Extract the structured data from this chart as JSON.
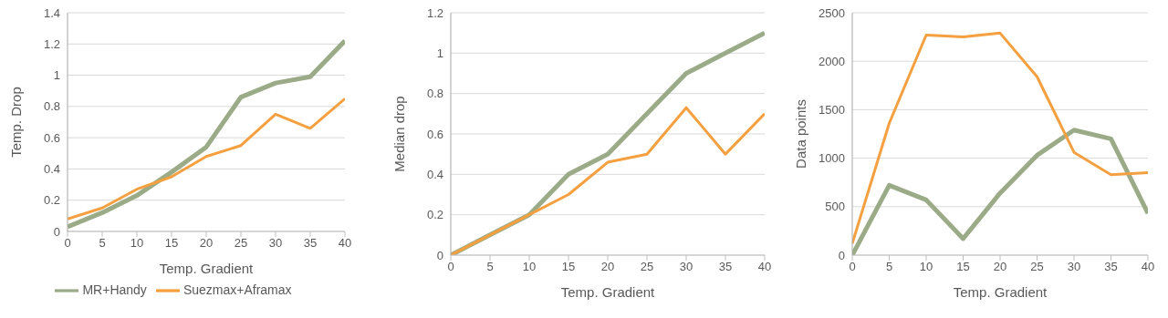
{
  "chart_data": [
    {
      "type": "line",
      "xlabel": "Temp. Gradient",
      "ylabel": "Temp. Drop",
      "x": [
        0,
        5,
        10,
        15,
        20,
        25,
        30,
        35,
        40
      ],
      "xlim": [
        0,
        40
      ],
      "xticks": [
        0,
        5,
        10,
        15,
        20,
        25,
        30,
        35,
        40
      ],
      "ylim": [
        0,
        1.4
      ],
      "yticks": [
        0,
        0.2,
        0.4,
        0.6,
        0.8,
        1,
        1.2,
        1.4
      ],
      "grid": "y",
      "legend": "bottom",
      "marker": "none",
      "line_style": "solid",
      "series": [
        {
          "name": "MR+Handy",
          "color": "#9bab87",
          "values": [
            0.03,
            0.12,
            0.23,
            0.38,
            0.54,
            0.86,
            0.95,
            0.99,
            1.22
          ]
        },
        {
          "name": "Suezmax+Aframax",
          "color": "#f4a040",
          "values": [
            0.08,
            0.15,
            0.27,
            0.35,
            0.48,
            0.55,
            0.75,
            0.66,
            0.85
          ]
        }
      ]
    },
    {
      "type": "line",
      "xlabel": "Temp. Gradient",
      "ylabel": "Median drop",
      "x": [
        0,
        5,
        10,
        15,
        20,
        25,
        30,
        35,
        40
      ],
      "xlim": [
        0,
        40
      ],
      "xticks": [
        0,
        5,
        10,
        15,
        20,
        25,
        30,
        35,
        40
      ],
      "ylim": [
        0,
        1.2
      ],
      "yticks": [
        0,
        0.2,
        0.4,
        0.6,
        0.8,
        1,
        1.2
      ],
      "grid": "y",
      "marker": "none",
      "line_style": "solid",
      "series": [
        {
          "color": "#9bab87",
          "values": [
            0,
            0.1,
            0.2,
            0.4,
            0.5,
            0.7,
            0.9,
            1.0,
            1.1
          ]
        },
        {
          "color": "#f4a040",
          "values": [
            0,
            0.1,
            0.2,
            0.3,
            0.46,
            0.5,
            0.73,
            0.5,
            0.7
          ]
        }
      ]
    },
    {
      "type": "line",
      "xlabel": "Temp. Gradient",
      "ylabel": "Data points",
      "x": [
        0,
        5,
        10,
        15,
        20,
        25,
        30,
        35,
        40
      ],
      "xlim": [
        0,
        40
      ],
      "xticks": [
        0,
        5,
        10,
        15,
        20,
        25,
        30,
        35,
        40
      ],
      "ylim": [
        0,
        2500
      ],
      "yticks": [
        0,
        500,
        1000,
        1500,
        2000,
        2500
      ],
      "grid": "y",
      "marker": "none",
      "line_style": "solid",
      "series": [
        {
          "color": "#9bab87",
          "values": [
            0,
            720,
            570,
            170,
            640,
            1030,
            1290,
            1200,
            430
          ]
        },
        {
          "color": "#f4a040",
          "values": [
            120,
            1360,
            2270,
            2250,
            2290,
            1840,
            1060,
            830,
            850
          ]
        }
      ]
    }
  ]
}
